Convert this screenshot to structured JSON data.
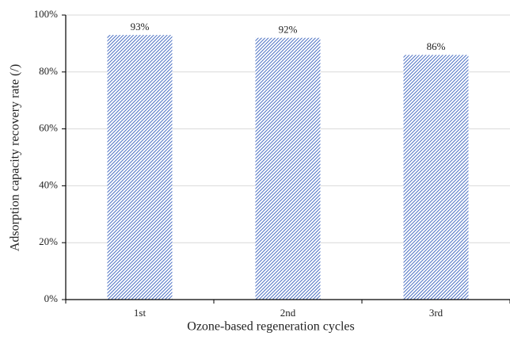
{
  "chart_data": {
    "type": "bar",
    "x_label": "Ozone-based regeneration cycles",
    "y_label": "Adsorption capacity recovery rate (/)",
    "categories": [
      "1st",
      "2nd",
      "3rd"
    ],
    "values": [
      93,
      92,
      86
    ],
    "value_labels": [
      "93%",
      "92%",
      "86%"
    ],
    "color": "#4a6fc2",
    "ylim": [
      0,
      100
    ],
    "yticks": [
      {
        "value": 0,
        "label": "0%"
      },
      {
        "value": 20,
        "label": "20%"
      },
      {
        "value": 40,
        "label": "40%"
      },
      {
        "value": 60,
        "label": "60%"
      },
      {
        "value": 80,
        "label": "80%"
      },
      {
        "value": 100,
        "label": "100%"
      }
    ],
    "grid": true
  }
}
